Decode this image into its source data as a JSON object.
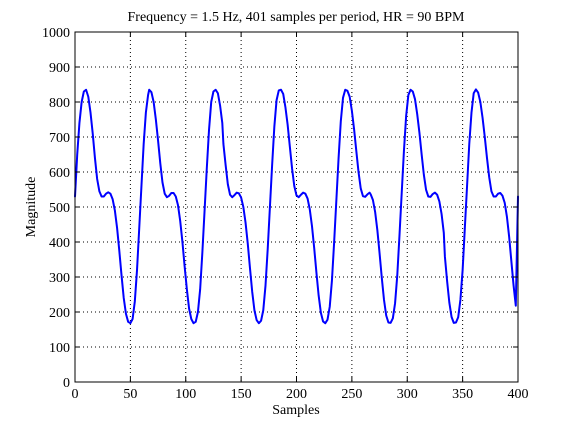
{
  "chart_data": {
    "type": "line",
    "title": "Frequency = 1.5 Hz, 401 samples per period, HR = 90 BPM",
    "xlabel": "Samples",
    "ylabel": "Magnitude",
    "xlim": [
      0,
      400
    ],
    "ylim": [
      0,
      1000
    ],
    "xticks": [
      0,
      50,
      100,
      150,
      200,
      250,
      300,
      350,
      400
    ],
    "yticks": [
      0,
      100,
      200,
      300,
      400,
      500,
      600,
      700,
      800,
      900,
      1000
    ],
    "xtick_labels": [
      "0",
      "50",
      "100",
      "150",
      "200",
      "250",
      "300",
      "350",
      "400"
    ],
    "ytick_labels": [
      "0",
      "100",
      "200",
      "300",
      "400",
      "500",
      "600",
      "700",
      "800",
      "900",
      "1000"
    ],
    "grid": "dotted",
    "series": [
      {
        "color": "#0000ff",
        "x": [
          0,
          2,
          4,
          6,
          8,
          10,
          12,
          14,
          16,
          18,
          20,
          22,
          24,
          26,
          28,
          30,
          32,
          34,
          36,
          38,
          40,
          42,
          44,
          46,
          48,
          50,
          52,
          54,
          56,
          58,
          60,
          62,
          64,
          66,
          67,
          69,
          71,
          73,
          75,
          77,
          79,
          81,
          83,
          85,
          87,
          89,
          91,
          93,
          95,
          97,
          99,
          101,
          103,
          105,
          107,
          109,
          111,
          113,
          115,
          117,
          119,
          121,
          123,
          125,
          127,
          129,
          131,
          133,
          134,
          136,
          138,
          140,
          142,
          144,
          146,
          148,
          150,
          152,
          154,
          156,
          158,
          160,
          162,
          164,
          166,
          168,
          170,
          172,
          174,
          176,
          178,
          180,
          182,
          184,
          186,
          188,
          190,
          192,
          194,
          196,
          198,
          200,
          202,
          204,
          206,
          208,
          210,
          212,
          214,
          216,
          218,
          220,
          222,
          224,
          226,
          228,
          230,
          232,
          234,
          236,
          238,
          240,
          242,
          244,
          246,
          248,
          250,
          252,
          254,
          256,
          258,
          260,
          262,
          264,
          266,
          267,
          269,
          271,
          273,
          275,
          277,
          279,
          281,
          283,
          285,
          287,
          289,
          291,
          293,
          295,
          297,
          299,
          301,
          303,
          305,
          307,
          309,
          311,
          313,
          315,
          317,
          319,
          321,
          323,
          325,
          327,
          329,
          331,
          333,
          334,
          336,
          338,
          340,
          342,
          344,
          346,
          348,
          350,
          352,
          354,
          356,
          358,
          360,
          362,
          364,
          366,
          368,
          370,
          372,
          374,
          376,
          378,
          380,
          382,
          384,
          386,
          388,
          390,
          392,
          394,
          396,
          398,
          400
        ],
        "y": [
          530,
          650,
          740,
          800,
          830,
          835,
          815,
          770,
          710,
          640,
          580,
          545,
          530,
          530,
          538,
          542,
          538,
          522,
          490,
          440,
          375,
          305,
          240,
          195,
          172,
          168,
          180,
          230,
          320,
          440,
          560,
          680,
          770,
          820,
          835,
          828,
          800,
          750,
          690,
          625,
          570,
          538,
          528,
          532,
          540,
          540,
          530,
          505,
          460,
          400,
          330,
          265,
          210,
          180,
          168,
          172,
          200,
          265,
          370,
          490,
          610,
          720,
          800,
          830,
          835,
          825,
          790,
          740,
          680,
          620,
          565,
          535,
          528,
          534,
          541,
          539,
          527,
          500,
          455,
          395,
          325,
          258,
          205,
          177,
          168,
          175,
          205,
          275,
          380,
          500,
          620,
          730,
          805,
          833,
          835,
          823,
          785,
          735,
          672,
          610,
          560,
          533,
          528,
          535,
          541,
          538,
          524,
          493,
          445,
          382,
          312,
          247,
          198,
          173,
          168,
          178,
          215,
          290,
          400,
          520,
          640,
          745,
          812,
          835,
          832,
          815,
          775,
          722,
          660,
          600,
          553,
          531,
          529,
          536,
          541,
          536,
          520,
          486,
          434,
          368,
          298,
          235,
          190,
          170,
          169,
          182,
          225,
          305,
          420,
          540,
          660,
          760,
          820,
          835,
          830,
          808,
          765,
          712,
          650,
          592,
          549,
          530,
          529,
          537,
          541,
          535,
          516,
          480,
          426,
          358,
          288,
          227,
          186,
          169,
          170,
          185,
          235,
          320,
          440,
          560,
          680,
          770,
          825,
          836,
          827,
          800,
          755,
          700,
          640,
          585,
          545,
          530,
          530,
          538,
          540,
          532,
          512,
          472,
          415,
          345,
          276,
          218,
          530
        ]
      }
    ]
  }
}
